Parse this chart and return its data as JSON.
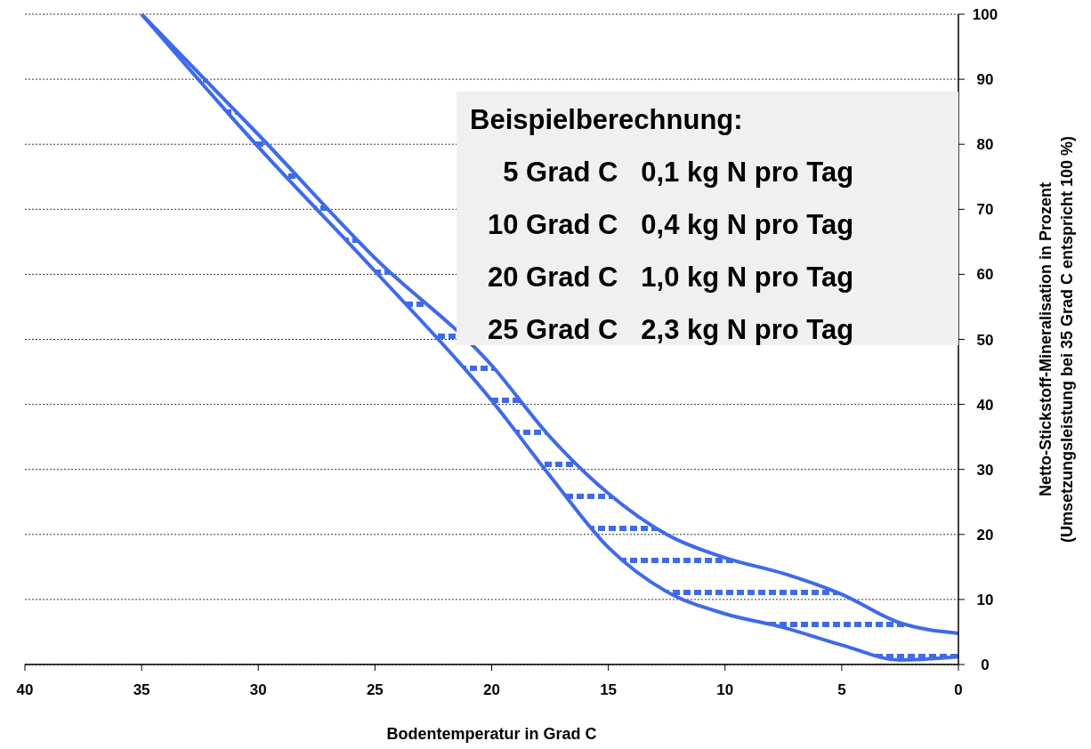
{
  "chart_data": {
    "type": "line",
    "xlabel": "Bodentemperatur in Grad C",
    "ylabel": "Netto-Stickstoff-Mineralisation in Prozent\n(Umsetzungsleistung bei 35 Grad C entspricht 100 %)",
    "x": [
      35,
      30,
      25,
      20,
      17.5,
      15,
      12.5,
      10,
      7.5,
      5,
      2.5,
      0
    ],
    "series": [
      {
        "color": "#3f6ae8",
        "values": [
          100,
          81.5,
          62.5,
          46,
          35,
          26.3,
          20,
          16.4,
          14,
          10.8,
          6.4,
          4.8
        ],
        "lower": [
          100,
          79.6,
          60.5,
          40.6,
          29,
          18,
          11.2,
          7.8,
          5.7,
          3,
          0.7,
          1.2
        ],
        "upper": [
          100,
          81.5,
          62.5,
          46,
          35,
          26.3,
          20,
          16.4,
          14,
          10.8,
          6.4,
          4.8
        ]
      },
      {
        "color": "#3f6ae8",
        "values": [
          100,
          79.6,
          60.5,
          40.6,
          29,
          18,
          11.2,
          7.8,
          5.7,
          3,
          0.7,
          1.2
        ]
      }
    ],
    "xlim": [
      40,
      0
    ],
    "xticks": [
      40,
      35,
      30,
      25,
      20,
      15,
      10,
      5,
      0
    ],
    "ylim": [
      0,
      100
    ],
    "yticks": [
      0,
      10,
      20,
      30,
      40,
      50,
      60,
      70,
      80,
      90,
      100
    ],
    "grid": "y",
    "annotations": [
      "Beispielberechnung:",
      "  5 Grad C   0,1 kg N pro Tag",
      "10 Grad C   0,4 kg N pro Tag",
      "20 Grad C   1,0 kg N pro Tag",
      "25 Grad C   2,3 kg N pro Tag"
    ]
  }
}
